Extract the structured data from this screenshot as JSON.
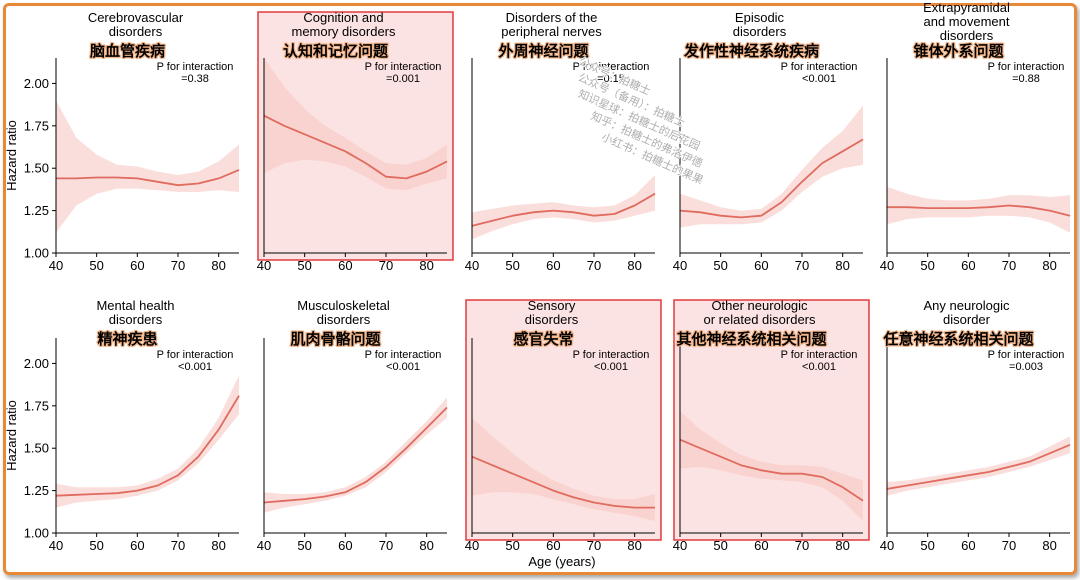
{
  "chart_data": {
    "type": "line",
    "shared_xlabel": "Age (years)",
    "shared_ylabel": "Hazard ratio",
    "xlim": [
      40,
      85
    ],
    "ylim": [
      1.0,
      2.15
    ],
    "xticks": [
      "40",
      "50",
      "60",
      "70",
      "80"
    ],
    "yticks": [
      "1.00",
      "1.25",
      "1.50",
      "1.75",
      "2.00"
    ],
    "line_color": "#e06b5f",
    "band_color": "#f7c8c3",
    "highlight_color": "#e23a3a",
    "panels": [
      {
        "title_en": [
          "Cerebrovascular",
          "disorders"
        ],
        "title_cn": "脑血管疾病",
        "p_label": "P for interaction",
        "p_value": "=0.38",
        "highlight": false,
        "x": [
          40,
          45,
          50,
          55,
          60,
          65,
          70,
          75,
          80,
          85
        ],
        "y": [
          1.44,
          1.44,
          1.445,
          1.445,
          1.44,
          1.42,
          1.4,
          1.41,
          1.44,
          1.49
        ],
        "lower": [
          1.12,
          1.28,
          1.35,
          1.38,
          1.38,
          1.37,
          1.36,
          1.36,
          1.37,
          1.36
        ],
        "upper": [
          1.9,
          1.68,
          1.58,
          1.52,
          1.51,
          1.48,
          1.46,
          1.48,
          1.54,
          1.64
        ]
      },
      {
        "title_en": [
          "Cognition and",
          "memory disorders"
        ],
        "title_cn": "认知和记忆问题",
        "p_label": "P for interaction",
        "p_value": "=0.001",
        "highlight": true,
        "x": [
          40,
          45,
          50,
          55,
          60,
          65,
          70,
          75,
          80,
          85
        ],
        "y": [
          1.81,
          1.75,
          1.7,
          1.65,
          1.6,
          1.53,
          1.45,
          1.44,
          1.48,
          1.54
        ],
        "lower": [
          1.47,
          1.53,
          1.55,
          1.54,
          1.51,
          1.45,
          1.38,
          1.37,
          1.41,
          1.44
        ],
        "upper": [
          2.15,
          1.98,
          1.85,
          1.75,
          1.68,
          1.6,
          1.53,
          1.52,
          1.56,
          1.64
        ]
      },
      {
        "title_en": [
          "Disorders of the",
          "peripheral nerves"
        ],
        "title_cn": "外周神经问题",
        "p_label": "P for interaction",
        "p_value": "=0.15",
        "highlight": false,
        "x": [
          40,
          45,
          50,
          55,
          60,
          65,
          70,
          75,
          80,
          85
        ],
        "y": [
          1.16,
          1.19,
          1.22,
          1.24,
          1.25,
          1.24,
          1.22,
          1.23,
          1.28,
          1.35
        ],
        "lower": [
          1.08,
          1.13,
          1.17,
          1.2,
          1.21,
          1.2,
          1.18,
          1.19,
          1.22,
          1.25
        ],
        "upper": [
          1.24,
          1.26,
          1.28,
          1.29,
          1.3,
          1.28,
          1.27,
          1.28,
          1.34,
          1.46
        ]
      },
      {
        "title_en": [
          "Episodic",
          "disorders"
        ],
        "title_cn": "发作性神经系统疾病",
        "p_label": "P for interaction",
        "p_value": "<0.001",
        "highlight": false,
        "x": [
          40,
          45,
          50,
          55,
          60,
          65,
          70,
          75,
          80,
          85
        ],
        "y": [
          1.25,
          1.24,
          1.22,
          1.21,
          1.22,
          1.3,
          1.42,
          1.53,
          1.6,
          1.67
        ],
        "lower": [
          1.15,
          1.17,
          1.17,
          1.17,
          1.18,
          1.25,
          1.36,
          1.45,
          1.5,
          1.52
        ],
        "upper": [
          1.35,
          1.31,
          1.27,
          1.25,
          1.26,
          1.35,
          1.49,
          1.62,
          1.72,
          1.87
        ]
      },
      {
        "title_en": [
          "Extrapyramidal",
          "and movement",
          "disorders"
        ],
        "title_cn": "锥体外系问题",
        "p_label": "P for interaction",
        "p_value": "=0.88",
        "highlight": false,
        "x": [
          40,
          45,
          50,
          55,
          60,
          65,
          70,
          75,
          80,
          85
        ],
        "y": [
          1.27,
          1.27,
          1.265,
          1.265,
          1.265,
          1.27,
          1.28,
          1.27,
          1.25,
          1.22
        ],
        "lower": [
          1.17,
          1.2,
          1.21,
          1.21,
          1.21,
          1.22,
          1.22,
          1.21,
          1.18,
          1.12
        ],
        "upper": [
          1.39,
          1.35,
          1.32,
          1.31,
          1.31,
          1.32,
          1.34,
          1.34,
          1.33,
          1.34
        ]
      },
      {
        "title_en": [
          "Mental health",
          "disorders"
        ],
        "title_cn": "精神疾患",
        "p_label": "P for interaction",
        "p_value": "<0.001",
        "highlight": false,
        "x": [
          40,
          45,
          50,
          55,
          60,
          65,
          70,
          75,
          80,
          85
        ],
        "y": [
          1.22,
          1.225,
          1.23,
          1.235,
          1.25,
          1.28,
          1.34,
          1.45,
          1.61,
          1.81
        ],
        "lower": [
          1.15,
          1.18,
          1.19,
          1.2,
          1.22,
          1.25,
          1.31,
          1.41,
          1.55,
          1.7
        ],
        "upper": [
          1.29,
          1.27,
          1.27,
          1.27,
          1.28,
          1.32,
          1.38,
          1.5,
          1.68,
          1.93
        ]
      },
      {
        "title_en": [
          "Musculoskeletal",
          "disorders"
        ],
        "title_cn": "肌肉骨骼问题",
        "p_label": "P for interaction",
        "p_value": "<0.001",
        "highlight": false,
        "x": [
          40,
          45,
          50,
          55,
          60,
          65,
          70,
          75,
          80,
          85
        ],
        "y": [
          1.18,
          1.19,
          1.2,
          1.215,
          1.24,
          1.3,
          1.39,
          1.5,
          1.62,
          1.74
        ],
        "lower": [
          1.12,
          1.15,
          1.17,
          1.19,
          1.22,
          1.27,
          1.36,
          1.47,
          1.58,
          1.68
        ],
        "upper": [
          1.24,
          1.23,
          1.23,
          1.24,
          1.27,
          1.33,
          1.42,
          1.54,
          1.66,
          1.8
        ]
      },
      {
        "title_en": [
          "Sensory",
          "disorders"
        ],
        "title_cn": "感官失常",
        "p_label": "P for interaction",
        "p_value": "<0.001",
        "highlight": true,
        "x": [
          40,
          45,
          50,
          55,
          60,
          65,
          70,
          75,
          80,
          85
        ],
        "y": [
          1.45,
          1.4,
          1.35,
          1.3,
          1.25,
          1.21,
          1.18,
          1.16,
          1.15,
          1.15
        ],
        "lower": [
          1.22,
          1.24,
          1.24,
          1.23,
          1.2,
          1.17,
          1.14,
          1.12,
          1.1,
          1.07
        ],
        "upper": [
          1.68,
          1.57,
          1.47,
          1.38,
          1.31,
          1.26,
          1.22,
          1.2,
          1.2,
          1.23
        ]
      },
      {
        "title_en": [
          "Other neurologic",
          "or related disorders"
        ],
        "title_cn": "其他神经系统相关问题",
        "p_label": "P for interaction",
        "p_value": "<0.001",
        "highlight": true,
        "x": [
          40,
          45,
          50,
          55,
          60,
          65,
          70,
          75,
          80,
          85
        ],
        "y": [
          1.55,
          1.5,
          1.45,
          1.4,
          1.37,
          1.35,
          1.35,
          1.33,
          1.27,
          1.19
        ],
        "lower": [
          1.38,
          1.39,
          1.37,
          1.34,
          1.32,
          1.31,
          1.3,
          1.27,
          1.19,
          1.07
        ],
        "upper": [
          1.72,
          1.61,
          1.53,
          1.46,
          1.42,
          1.4,
          1.4,
          1.39,
          1.35,
          1.31
        ]
      },
      {
        "title_en": [
          "Any neurologic",
          "disorder"
        ],
        "title_cn": "任意神经系统相关问题",
        "p_label": "P for interaction",
        "p_value": "=0.003",
        "highlight": false,
        "x": [
          40,
          45,
          50,
          55,
          60,
          65,
          70,
          75,
          80,
          85
        ],
        "y": [
          1.26,
          1.28,
          1.3,
          1.32,
          1.34,
          1.36,
          1.39,
          1.42,
          1.47,
          1.52
        ],
        "lower": [
          1.22,
          1.25,
          1.27,
          1.29,
          1.31,
          1.33,
          1.36,
          1.39,
          1.43,
          1.47
        ],
        "upper": [
          1.3,
          1.31,
          1.33,
          1.35,
          1.37,
          1.39,
          1.42,
          1.45,
          1.51,
          1.57
        ]
      }
    ],
    "watermark": [
      "公众号：拍糖士",
      "公众号（备用）：拍糖士",
      "知识星球：拍糖士的后花园",
      "知乎：拍糖士的弗洛伊德",
      "小红书：拍糖士的果果"
    ]
  }
}
